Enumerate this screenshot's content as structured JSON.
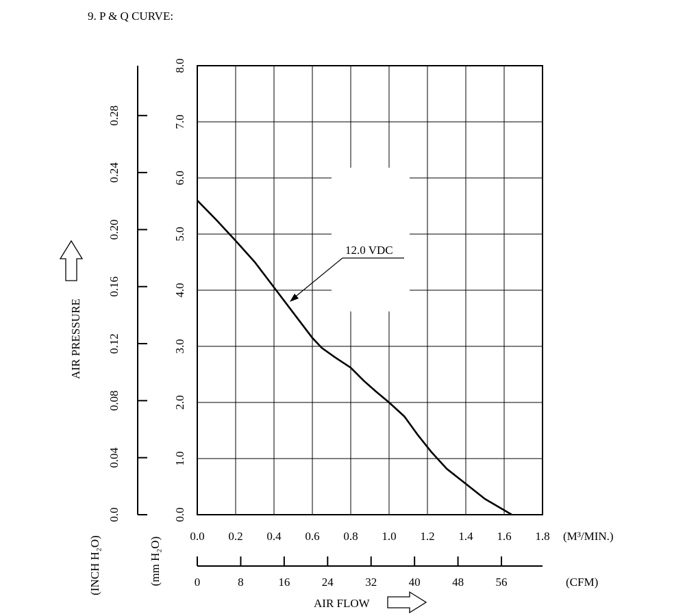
{
  "heading": "9. P & Q CURVE:",
  "chart_data": {
    "type": "line",
    "title": "",
    "series": [
      {
        "name": "12.0 VDC",
        "x": [
          0.0,
          0.1,
          0.2,
          0.3,
          0.4,
          0.5,
          0.6,
          0.65,
          0.72,
          0.8,
          0.87,
          0.93,
          1.0,
          1.08,
          1.15,
          1.22,
          1.3,
          1.4,
          1.5,
          1.6,
          1.64
        ],
        "y": [
          5.6,
          5.25,
          4.88,
          4.5,
          4.05,
          3.6,
          3.15,
          2.97,
          2.8,
          2.62,
          2.38,
          2.2,
          2.0,
          1.75,
          1.42,
          1.12,
          0.82,
          0.55,
          0.28,
          0.08,
          0.0
        ]
      }
    ],
    "annotation": "12.0 VDC",
    "x_axis": {
      "label": "AIR FLOW",
      "unit": "(M³/MIN.)",
      "range": [
        0,
        1.8
      ],
      "ticks": [
        "0.0",
        "0.2",
        "0.4",
        "0.6",
        "0.8",
        "1.0",
        "1.2",
        "1.4",
        "1.6",
        "1.8"
      ]
    },
    "x_axis_cfm": {
      "unit": "(CFM)",
      "ticks": [
        "0",
        "8",
        "16",
        "24",
        "32",
        "40",
        "48",
        "56"
      ]
    },
    "y_axis_mm": {
      "label": "AIR PRESSURE",
      "unit": "(mm H₂O)",
      "range": [
        0,
        8
      ],
      "ticks": [
        "0.0",
        "1.0",
        "2.0",
        "3.0",
        "4.0",
        "5.0",
        "6.0",
        "7.0",
        "8.0"
      ]
    },
    "y_axis_inch": {
      "unit": "(INCH H₂O)",
      "ticks": [
        "0.0",
        "0.04",
        "0.08",
        "0.12",
        "0.16",
        "0.20",
        "0.24",
        "0.28"
      ]
    },
    "grid": true
  }
}
